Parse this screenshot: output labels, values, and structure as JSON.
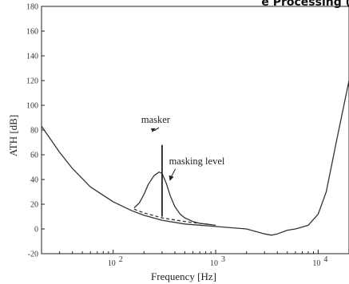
{
  "caption": "e Processing (",
  "chart_data": {
    "type": "line",
    "title": "",
    "xlabel": "Frequency [Hz]",
    "ylabel": "ATH [dB]",
    "xscale": "log",
    "xlim": [
      20,
      20000
    ],
    "ylim": [
      -20,
      180
    ],
    "x_ticks": [
      {
        "value": 100,
        "base": "10",
        "exp": "2"
      },
      {
        "value": 1000,
        "base": "10",
        "exp": "3"
      },
      {
        "value": 10000,
        "base": "10",
        "exp": "4"
      }
    ],
    "y_ticks": [
      -20,
      0,
      20,
      40,
      60,
      80,
      100,
      120,
      140,
      160,
      180
    ],
    "grid": false,
    "series": [
      {
        "style": "solid",
        "x": [
          20,
          30,
          40,
          60,
          100,
          150,
          200,
          300,
          500,
          1000,
          2000,
          3000,
          3500,
          4000,
          5000,
          6000,
          8000,
          10000,
          12000,
          15000,
          20000
        ],
        "y": [
          83,
          62,
          49,
          34,
          22,
          15,
          11,
          7,
          4,
          2,
          0,
          -4,
          -5,
          -4,
          -1,
          0,
          3,
          12,
          30,
          70,
          120
        ]
      },
      {
        "style": "solid",
        "x": [
          160,
          180,
          200,
          220,
          250,
          280,
          300,
          330,
          360,
          400,
          450,
          500,
          600,
          700,
          800,
          900,
          1000
        ],
        "y": [
          17,
          21,
          28,
          36,
          43,
          46,
          45,
          37,
          27,
          18,
          12,
          9,
          6,
          4.5,
          4,
          3.5,
          3
        ]
      },
      {
        "style": "dashed",
        "x": [
          160,
          200,
          300,
          500,
          700,
          900
        ],
        "y": [
          16,
          13,
          9,
          6,
          4.5,
          3.5
        ]
      }
    ],
    "masker": {
      "x": 300,
      "y_from": 10,
      "y_to": 68
    },
    "annotations": [
      {
        "text": "masker",
        "x": 300,
        "y": 82
      },
      {
        "text": "masking level",
        "x": 600,
        "y": 55
      }
    ]
  }
}
